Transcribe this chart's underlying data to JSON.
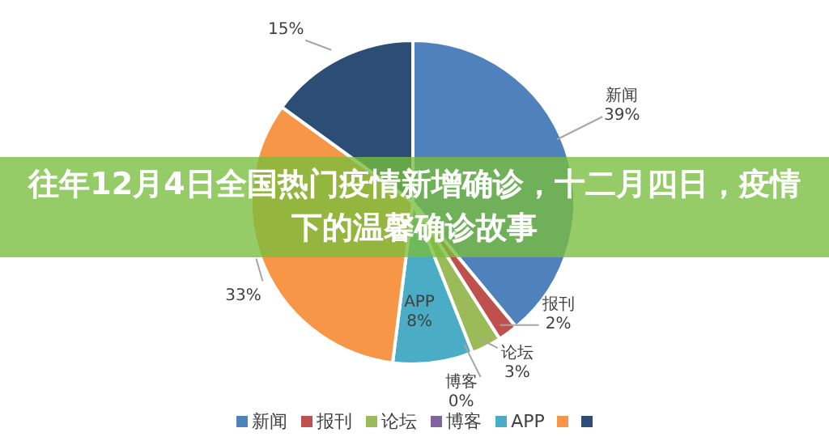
{
  "chart_data": {
    "type": "pie",
    "title": "往年12月4日全国热门疫情新增确诊，十二月四日，疫情下的温馨确诊故事",
    "categories": [
      "新闻",
      "报刊",
      "论坛",
      "博客",
      "APP",
      null,
      null
    ],
    "values": [
      39,
      2,
      3,
      0,
      8,
      33,
      15
    ],
    "value_labels": [
      "39%",
      "2%",
      "3%",
      "0%",
      "8%",
      "33%",
      "15%"
    ],
    "colors": [
      "#4f81bd",
      "#c0504d",
      "#9bbb59",
      "#8064a2",
      "#4bacc6",
      "#f79646",
      "#2c4d75"
    ],
    "legend": "bottom"
  }
}
